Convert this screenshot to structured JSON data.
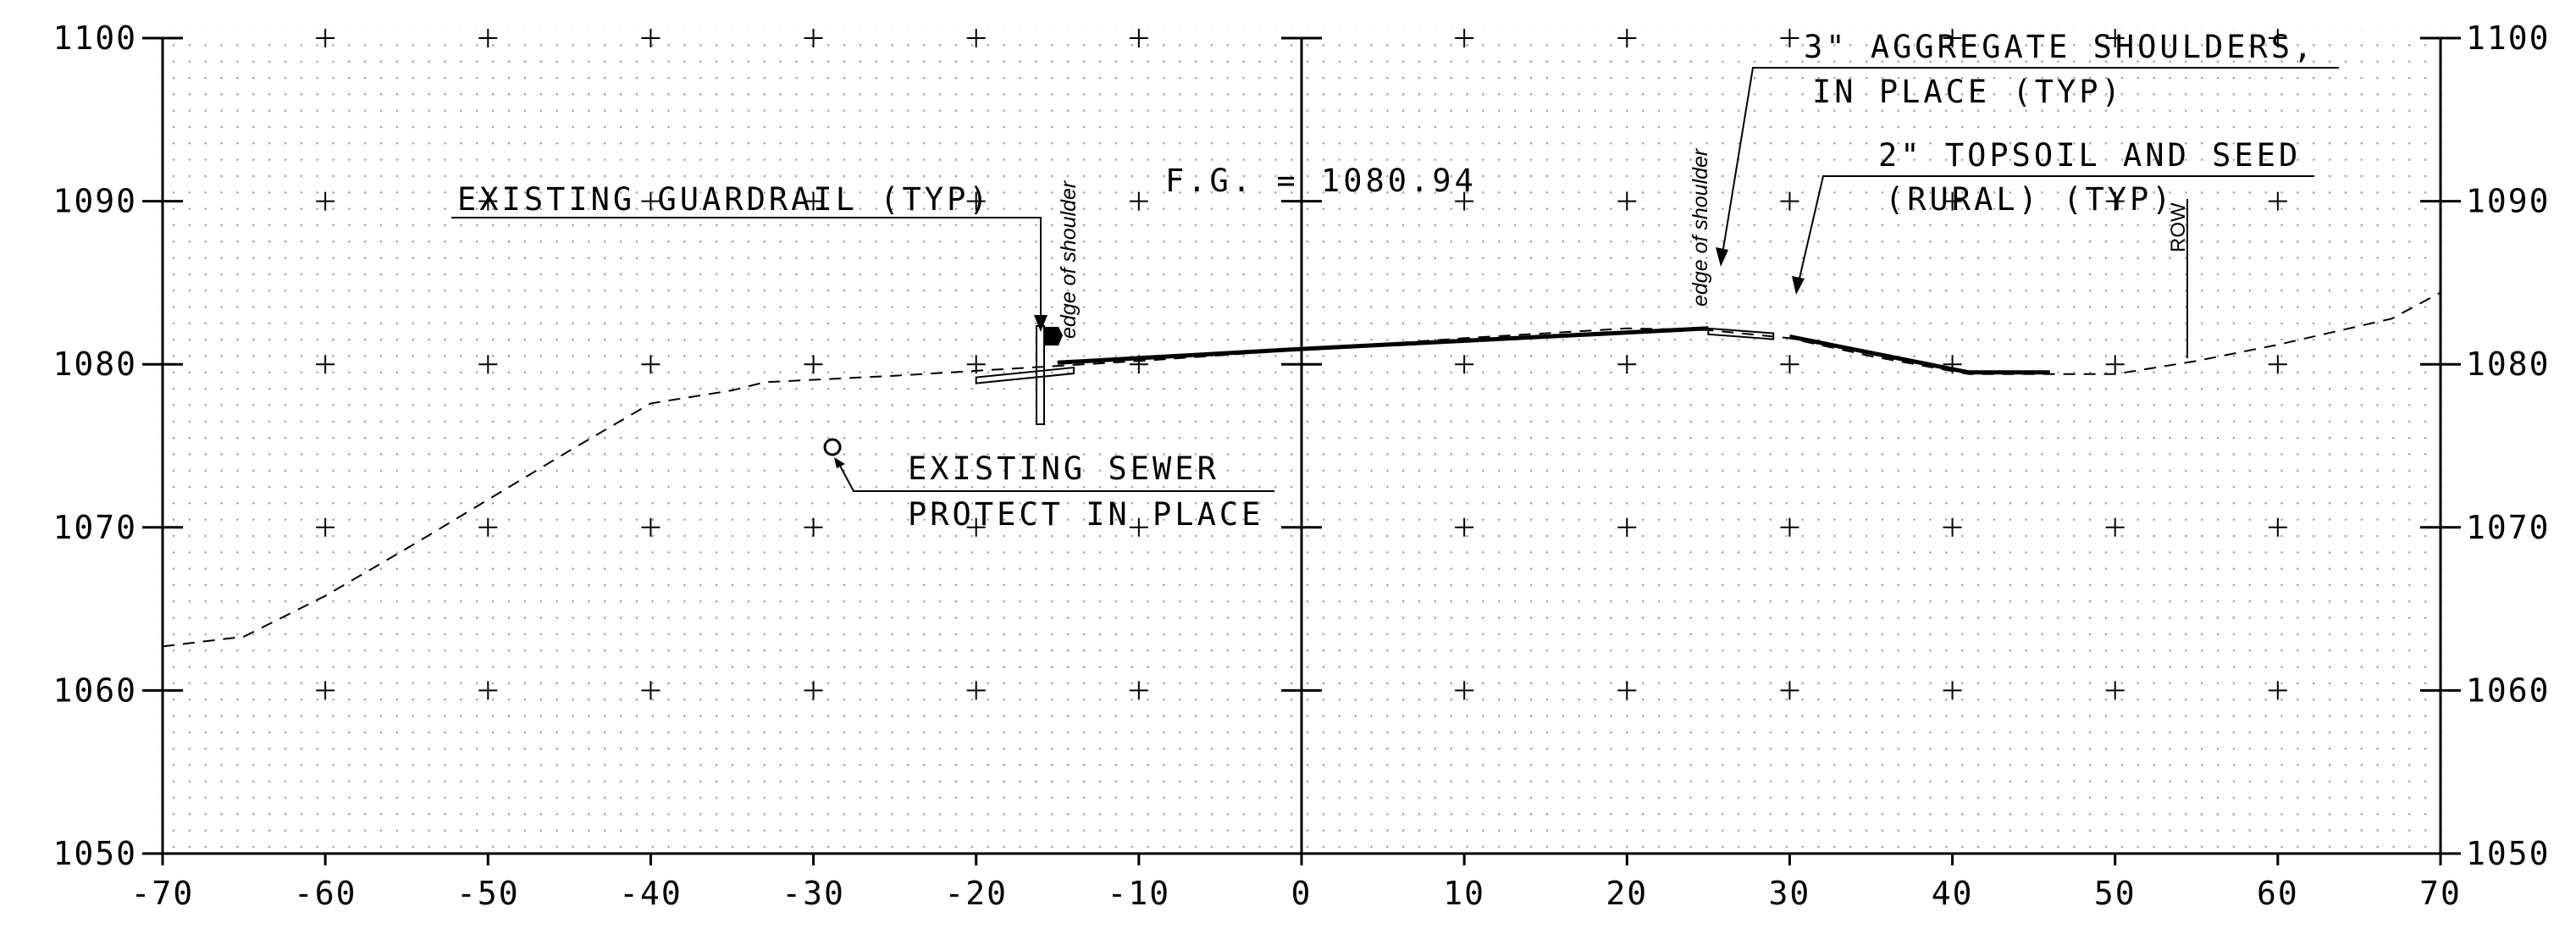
{
  "axes": {
    "x_range": [
      -70,
      70
    ],
    "y_range": [
      1050,
      1100
    ],
    "x_ticks": [
      "-70",
      "-60",
      "-50",
      "-40",
      "-30",
      "-20",
      "-10",
      "0",
      "10",
      "20",
      "30",
      "40",
      "50",
      "60",
      "70"
    ],
    "y_ticks_left": [
      "1100",
      "1090",
      "1080",
      "1070",
      "1060",
      "1050"
    ],
    "y_ticks_right": [
      "1100",
      "1090",
      "1080",
      "1070",
      "1060",
      "1050"
    ],
    "grid": "dotted with cross markers"
  },
  "profiles": {
    "existing_ground": [
      [
        -70,
        1062.7
      ],
      [
        -65,
        1063.3
      ],
      [
        -60,
        1065.8
      ],
      [
        -55,
        1068.7
      ],
      [
        -50,
        1071.7
      ],
      [
        -45,
        1074.7
      ],
      [
        -40,
        1077.6
      ],
      [
        -35,
        1078.4
      ],
      [
        -33,
        1078.9
      ],
      [
        -25,
        1079.3
      ],
      [
        -20,
        1079.6
      ],
      [
        -10,
        1080.2
      ],
      [
        0,
        1080.9
      ],
      [
        10,
        1081.6
      ],
      [
        20,
        1082.2
      ],
      [
        25,
        1082.1
      ],
      [
        30,
        1081.6
      ],
      [
        35,
        1080.5
      ],
      [
        41,
        1079.4
      ],
      [
        50,
        1079.4
      ],
      [
        55,
        1080.2
      ],
      [
        60,
        1081.2
      ],
      [
        67,
        1082.8
      ],
      [
        70,
        1084.4
      ]
    ],
    "proposed_surface": [
      [
        -15,
        1080.1
      ],
      [
        0,
        1080.94
      ],
      [
        25,
        1082.2
      ]
    ],
    "proposed_slope": [
      [
        30,
        1081.7
      ],
      [
        41,
        1079.5
      ],
      [
        46,
        1079.5
      ]
    ],
    "shoulder_left": [
      [
        -20,
        1079.2
      ],
      [
        -14,
        1079.8
      ]
    ],
    "shoulder_right": [
      [
        25,
        1082.2
      ],
      [
        29,
        1081.9
      ]
    ]
  },
  "annotations": {
    "fg_label": "F.G.  = 1080.94",
    "existing_guardrail": "EXISTING GUARDRAIL (TYP)",
    "edge_of_shoulder_left": "edge of shoulder",
    "edge_of_shoulder_right": "edge of shoulder",
    "aggregate_shoulders_line1": "3\" AGGREGATE SHOULDERS,",
    "aggregate_shoulders_line2": "IN PLACE (TYP)",
    "topsoil_line1": "2\" TOPSOIL AND SEED",
    "topsoil_line2": "(RURAL) (TYP)",
    "row_label": "ROW",
    "sewer_line1": "EXISTING SEWER",
    "sewer_line2": "PROTECT IN PLACE"
  },
  "colors": {
    "line": "#000000",
    "background": "#ffffff",
    "grid_dot": "#9a9a9a"
  }
}
